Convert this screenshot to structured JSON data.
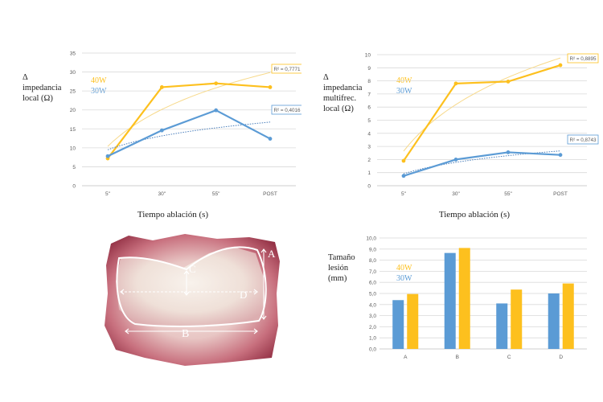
{
  "colors": {
    "w40": "#FDC01E",
    "w30": "#5B9BD5",
    "grid": "#D9D9D9",
    "axis": "#BFBFBF",
    "tick": "#595959",
    "trend40": "#F7D98A",
    "trend30": "#4A7EBB"
  },
  "legend": {
    "w40": "40W",
    "w30": "30W"
  },
  "photo": {
    "label_a": "A",
    "label_b": "B",
    "label_c": "C",
    "label_d": "D"
  },
  "chart_data": [
    {
      "type": "line",
      "ylabel_lines": [
        "Δ",
        "impedancia",
        "local (Ω)"
      ],
      "xlabel": "Tiempo ablación (s)",
      "categories": [
        "5\"",
        "30\"",
        "55\"",
        "POST"
      ],
      "ylim": [
        0,
        35
      ],
      "yticks": [
        "0",
        "5",
        "10",
        "15",
        "20",
        "25",
        "30",
        "35"
      ],
      "grid": true,
      "series": [
        {
          "name": "40W",
          "values": [
            7.2,
            26,
            27,
            26
          ],
          "r2": "R² = 0,7771"
        },
        {
          "name": "30W",
          "values": [
            7.8,
            14.6,
            19.9,
            12.4
          ],
          "r2": "R² = 0,4016"
        }
      ]
    },
    {
      "type": "line",
      "ylabel_lines": [
        "Δ",
        "impedancia",
        "multifrec.",
        "local (Ω)"
      ],
      "xlabel": "Tiempo ablación (s)",
      "categories": [
        "5\"",
        "30\"",
        "55\"",
        "POST"
      ],
      "ylim": [
        0,
        10
      ],
      "yticks": [
        "0",
        "1",
        "2",
        "3",
        "4",
        "5",
        "6",
        "7",
        "8",
        "9",
        "10"
      ],
      "grid": true,
      "series": [
        {
          "name": "40W",
          "values": [
            1.9,
            7.8,
            7.95,
            9.2
          ],
          "r2": "R² = 0,8895"
        },
        {
          "name": "30W",
          "values": [
            0.75,
            2.0,
            2.55,
            2.35
          ],
          "r2": "R² = 0,8743"
        }
      ]
    },
    {
      "type": "bar",
      "ylabel_lines": [
        "Tamaño",
        "lesión",
        "(mm)"
      ],
      "categories": [
        "A",
        "B",
        "C",
        "D"
      ],
      "ylim": [
        0,
        10
      ],
      "yticks": [
        "0,0",
        "1,0",
        "2,0",
        "3,0",
        "4,0",
        "5,0",
        "6,0",
        "7,0",
        "8,0",
        "9,0",
        "10,0"
      ],
      "grid": true,
      "series": [
        {
          "name": "30W",
          "values": [
            4.4,
            8.65,
            4.1,
            5.0
          ]
        },
        {
          "name": "40W",
          "values": [
            4.95,
            9.1,
            5.35,
            5.9
          ]
        }
      ]
    }
  ]
}
